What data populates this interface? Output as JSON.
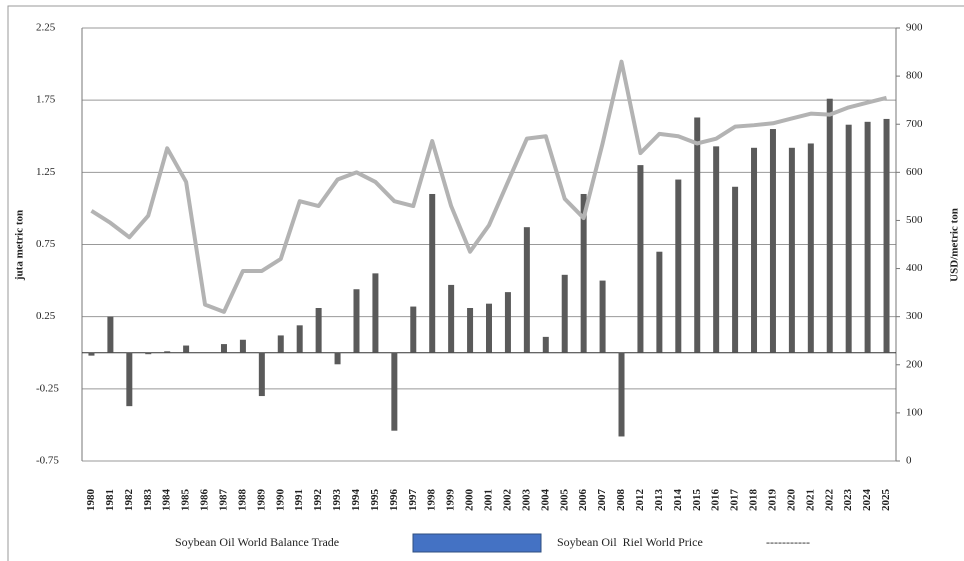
{
  "chart_data": {
    "type": "bar-line",
    "categories": [
      "1980",
      "1981",
      "1982",
      "1983",
      "1984",
      "1985",
      "1986",
      "1987",
      "1988",
      "1989",
      "1990",
      "1991",
      "1992",
      "1993",
      "1994",
      "1995",
      "1996",
      "1997",
      "1998",
      "1999",
      "2000",
      "2001",
      "2002",
      "2003",
      "2004",
      "2005",
      "2006",
      "2007",
      "2008",
      "2012",
      "2013",
      "2014",
      "2015",
      "2016",
      "2017",
      "2018",
      "2019",
      "2020",
      "2021",
      "2022",
      "2023",
      "2024",
      "2025"
    ],
    "series": [
      {
        "name": "Soybean Oil World Balance Trade",
        "type": "bar",
        "color": "#5a5a5a",
        "legend_color": "#4472c4",
        "values": [
          -0.02,
          0.25,
          -0.37,
          -0.01,
          0.01,
          0.05,
          0,
          0.06,
          0.09,
          -0.3,
          0.12,
          0.19,
          0.31,
          -0.08,
          0.44,
          0.55,
          -0.54,
          0.32,
          1.1,
          0.47,
          0.31,
          0.34,
          0.42,
          0.87,
          0.11,
          0.54,
          1.1,
          0.5,
          -0.58,
          1.3,
          0.7,
          1.2,
          1.63,
          1.43,
          1.15,
          1.42,
          1.55,
          1.42,
          1.45,
          1.76,
          1.58,
          1.6,
          1.62
        ]
      },
      {
        "name": "Soybean Oil  Riel World Price",
        "type": "line",
        "axis": "y2",
        "color": "#b3b3b3",
        "legend_key": "-----------",
        "values": [
          520,
          495,
          465,
          510,
          650,
          580,
          325,
          310,
          395,
          395,
          420,
          540,
          530,
          585,
          600,
          580,
          540,
          530,
          665,
          530,
          435,
          490,
          580,
          670,
          675,
          545,
          505,
          660,
          830,
          640,
          680,
          675,
          660,
          670,
          695,
          698,
          702,
          712,
          722,
          720,
          735,
          745,
          755
        ]
      }
    ],
    "ylabel": "juta metric ton",
    "y2label": "USD/metric ton",
    "ylim": [
      -0.75,
      2.25
    ],
    "yticks": [
      -0.75,
      -0.25,
      0.25,
      0.75,
      1.25,
      1.75,
      2.25
    ],
    "y2lim": [
      0,
      900
    ],
    "y2ticks": [
      0,
      100,
      200,
      300,
      400,
      500,
      600,
      700,
      800,
      900
    ],
    "grid": true
  }
}
